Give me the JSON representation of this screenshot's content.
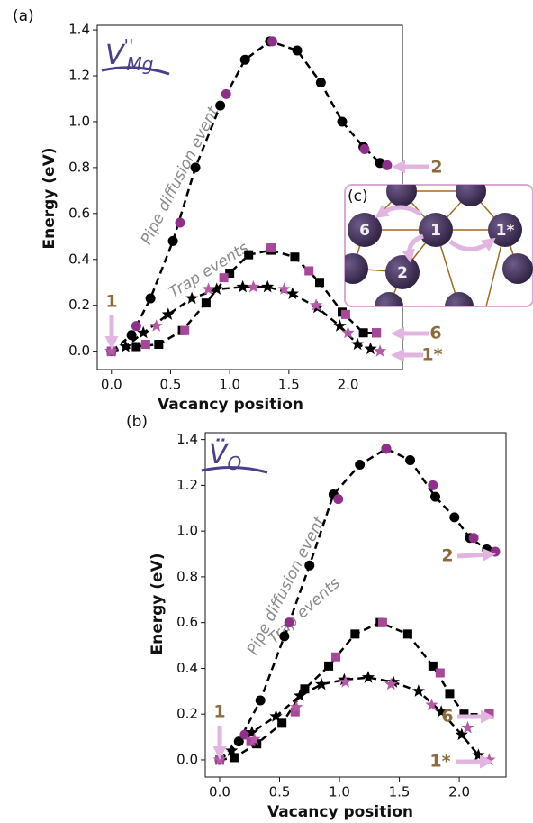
{
  "chart_data": [
    {
      "type": "line",
      "panel": "(a)",
      "defect_label": {
        "base": "V",
        "charge": "''",
        "site": "Mg"
      },
      "xlabel": "Vacancy position",
      "ylabel": "Energy (eV)",
      "xlim": [
        -0.12,
        2.46
      ],
      "ylim": [
        -0.08,
        1.42
      ],
      "xticks": [
        {
          "value": 0,
          "label": "0.0"
        },
        0.5,
        {
          "value": 1,
          "label": "1.0"
        },
        1.5,
        {
          "value": 2,
          "label": "2.0"
        }
      ],
      "yticks": [
        {
          "value": 0,
          "label": "0.0"
        },
        0.2,
        0.4,
        0.6,
        0.8,
        {
          "value": 1,
          "label": "1.0"
        },
        1.2,
        1.4
      ],
      "annotations": [
        "Pipe diffusion event",
        "Trap events"
      ],
      "site_labels": [
        "1",
        "2",
        "6",
        "1*"
      ],
      "series": [
        {
          "marker": "circle",
          "color": "#000000",
          "dashed_line": true,
          "x": [
            0,
            0.17,
            0.33,
            0.52,
            0.71,
            0.92,
            1.13,
            1.34,
            1.57,
            1.77,
            1.95,
            2.13,
            2.27
          ],
          "values": [
            0,
            0.07,
            0.23,
            0.48,
            0.8,
            1.07,
            1.27,
            1.35,
            1.31,
            1.17,
            1.0,
            0.89,
            0.82
          ]
        },
        {
          "marker": "circle",
          "color": "#8e2f8a",
          "dashed_line": false,
          "x": [
            0,
            0.21,
            0.58,
            0.97,
            1.36,
            2.14,
            2.33
          ],
          "values": [
            0,
            0.11,
            0.56,
            1.12,
            1.35,
            0.88,
            0.81
          ]
        },
        {
          "marker": "square",
          "color": "#000000",
          "dashed_line": true,
          "x": [
            0,
            0.21,
            0.4,
            0.6,
            0.8,
            1.0,
            1.16,
            1.35,
            1.55,
            1.76,
            1.95,
            2.13,
            2.24
          ],
          "values": [
            0,
            0.02,
            0.03,
            0.09,
            0.21,
            0.34,
            0.42,
            0.44,
            0.41,
            0.3,
            0.17,
            0.08,
            0.08
          ]
        },
        {
          "marker": "square",
          "color": "#a8479a",
          "dashed_line": false,
          "x": [
            0,
            0.29,
            0.62,
            0.95,
            1.35,
            1.67,
            1.98,
            2.24
          ],
          "values": [
            0,
            0.03,
            0.09,
            0.32,
            0.45,
            0.35,
            0.16,
            0.08
          ]
        },
        {
          "marker": "star",
          "color": "#000000",
          "dashed_line": true,
          "x": [
            0,
            0.12,
            0.27,
            0.48,
            0.68,
            0.89,
            1.11,
            1.32,
            1.53,
            1.74,
            1.93,
            2.08,
            2.19
          ],
          "values": [
            0,
            0.02,
            0.08,
            0.16,
            0.23,
            0.27,
            0.28,
            0.28,
            0.25,
            0.19,
            0.11,
            0.03,
            0.01
          ]
        },
        {
          "marker": "star",
          "color": "#b65aa8",
          "dashed_line": false,
          "x": [
            0,
            0.38,
            0.82,
            1.2,
            1.46,
            1.73,
            2.0,
            2.27
          ],
          "values": [
            0,
            0.11,
            0.27,
            0.28,
            0.27,
            0.2,
            0.08,
            0
          ]
        }
      ]
    },
    {
      "type": "line",
      "panel": "(b)",
      "defect_label": {
        "base": "V̈",
        "charge": "",
        "site": "O"
      },
      "xlabel": "Vacancy position",
      "ylabel": "Energy (eV)",
      "xlim": [
        -0.12,
        2.39
      ],
      "ylim": [
        -0.075,
        1.43
      ],
      "xticks": [
        {
          "value": 0,
          "label": "0.0"
        },
        0.5,
        {
          "value": 1,
          "label": "1.0"
        },
        1.5,
        {
          "value": 2,
          "label": "2.0"
        }
      ],
      "yticks": [
        {
          "value": 0,
          "label": "0.0"
        },
        0.2,
        0.4,
        0.6,
        0.8,
        {
          "value": 1,
          "label": "1.0"
        },
        1.2,
        1.4
      ],
      "annotations": [
        "Pipe diffusion event",
        "Trap events"
      ],
      "site_labels": [
        "1",
        "2",
        "6",
        "1*"
      ],
      "series": [
        {
          "marker": "circle",
          "color": "#000000",
          "dashed_line": true,
          "x": [
            0,
            0.16,
            0.34,
            0.54,
            0.75,
            0.95,
            1.17,
            1.39,
            1.59,
            1.8,
            1.96,
            2.09,
            2.23
          ],
          "values": [
            0,
            0.08,
            0.26,
            0.54,
            0.85,
            1.16,
            1.29,
            1.36,
            1.31,
            1.15,
            1.06,
            0.97,
            0.92
          ]
        },
        {
          "marker": "circle",
          "color": "#8e2f8a",
          "dashed_line": false,
          "x": [
            0,
            0.21,
            0.58,
            0.99,
            1.39,
            1.78,
            2.12,
            2.3
          ],
          "values": [
            0,
            0.11,
            0.6,
            1.14,
            1.36,
            1.2,
            0.97,
            0.91
          ]
        },
        {
          "marker": "square",
          "color": "#000000",
          "dashed_line": true,
          "x": [
            0,
            0.12,
            0.31,
            0.52,
            0.71,
            0.91,
            1.13,
            1.34,
            1.57,
            1.78,
            1.92,
            2.04,
            2.25
          ],
          "values": [
            0,
            0.01,
            0.07,
            0.16,
            0.31,
            0.41,
            0.55,
            0.6,
            0.55,
            0.41,
            0.29,
            0.2,
            0.2
          ]
        },
        {
          "marker": "square",
          "color": "#a8479a",
          "dashed_line": false,
          "x": [
            0,
            0.26,
            0.63,
            0.97,
            1.36,
            1.84,
            2.25
          ],
          "values": [
            0,
            0.08,
            0.21,
            0.45,
            0.6,
            0.38,
            0.2
          ]
        },
        {
          "marker": "star",
          "color": "#000000",
          "dashed_line": true,
          "x": [
            0,
            0.1,
            0.27,
            0.47,
            0.67,
            0.85,
            1.04,
            1.24,
            1.45,
            1.66,
            1.85,
            2.02,
            2.16
          ],
          "values": [
            0,
            0.04,
            0.12,
            0.19,
            0.28,
            0.33,
            0.35,
            0.36,
            0.34,
            0.3,
            0.21,
            0.11,
            0.02
          ]
        },
        {
          "marker": "star",
          "color": "#b65aa8",
          "dashed_line": false,
          "x": [
            0,
            0.29,
            0.64,
            1.05,
            1.43,
            1.77,
            2.07,
            2.25
          ],
          "values": [
            0,
            0.09,
            0.23,
            0.34,
            0.33,
            0.24,
            0.14,
            0
          ]
        }
      ]
    }
  ],
  "inset": {
    "label": "(c)",
    "sites": [
      "6",
      "1",
      "1*",
      "2"
    ]
  }
}
